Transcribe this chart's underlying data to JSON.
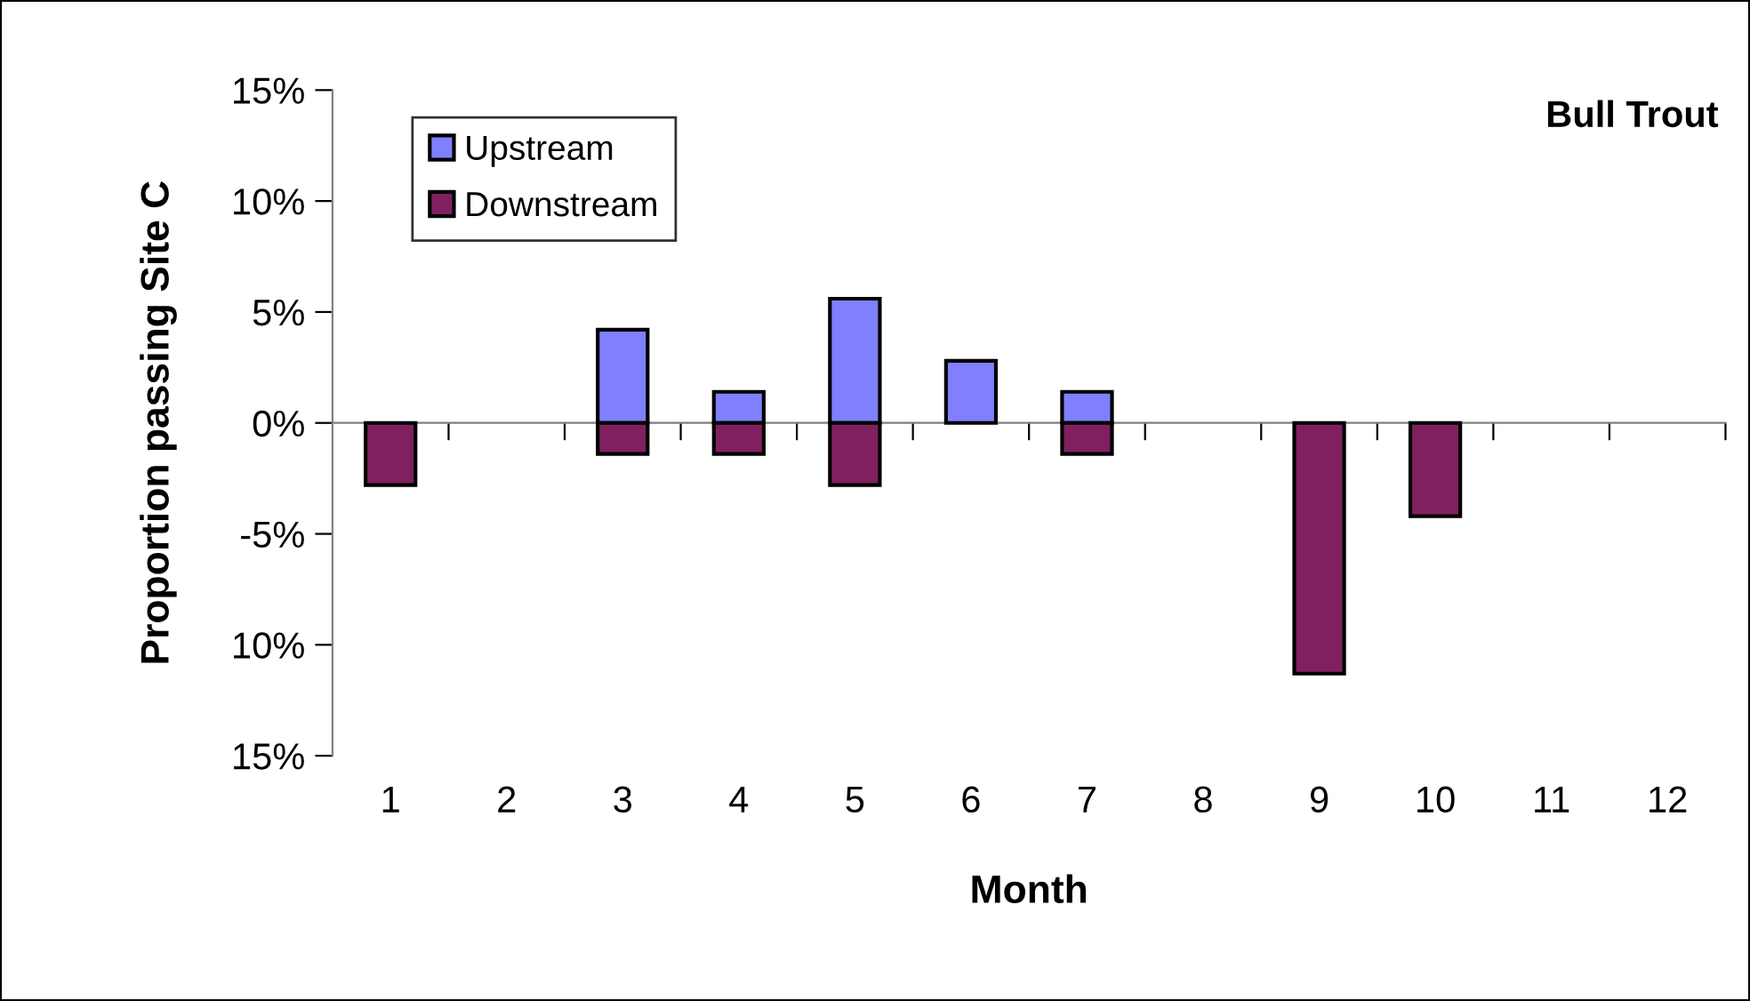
{
  "chart_data": {
    "type": "bar",
    "title": "Bull Trout",
    "xlabel": "Month",
    "ylabel": "Proportion passing Site C",
    "categories": [
      "1",
      "2",
      "3",
      "4",
      "5",
      "6",
      "7",
      "8",
      "9",
      "10",
      "11",
      "12"
    ],
    "series": [
      {
        "name": "Upstream",
        "color": "#8080ff",
        "values": [
          null,
          null,
          4.2,
          1.4,
          5.6,
          2.8,
          1.4,
          null,
          null,
          null,
          null,
          null
        ]
      },
      {
        "name": "Downstream",
        "color": "#80205f",
        "values": [
          -2.8,
          null,
          -1.4,
          -1.4,
          -2.8,
          null,
          -1.4,
          null,
          -11.3,
          -4.2,
          null,
          null
        ]
      }
    ],
    "ylim": [
      -15,
      15
    ],
    "yticks": [
      {
        "value": 15,
        "label": "15%"
      },
      {
        "value": 10,
        "label": "10%"
      },
      {
        "value": 5,
        "label": "5%"
      },
      {
        "value": 0,
        "label": "0%"
      },
      {
        "value": -5,
        "label": "-5%"
      },
      {
        "value": -10,
        "label": "10%"
      },
      {
        "value": -15,
        "label": "15%"
      }
    ],
    "legend": "top left"
  }
}
